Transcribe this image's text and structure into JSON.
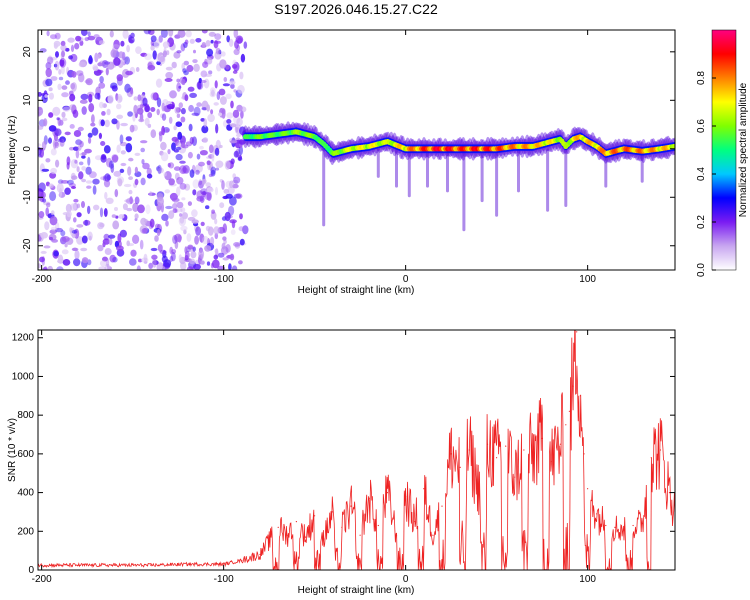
{
  "page_title": "S197.2026.046.15.27.C22",
  "chart_data": [
    {
      "type": "heatmap",
      "name": "spectrogram",
      "xlabel": "Height of straight line (km)",
      "ylabel": "Frequency (Hz)",
      "xlim": [
        -202,
        148
      ],
      "ylim": [
        -25,
        24.5
      ],
      "xticks": [
        -200,
        -100,
        0,
        100
      ],
      "yticks": [
        -20,
        -10,
        0,
        10,
        20
      ],
      "noise_region_x": [
        -202,
        -88
      ],
      "colorbar": {
        "label": "Normalized spectral amplitude",
        "range": [
          0,
          1
        ],
        "ticks": [
          "0.0",
          "0.2",
          "0.4",
          "0.6",
          "0.8"
        ],
        "tick_values": [
          0,
          0.2,
          0.4,
          0.6,
          0.8
        ],
        "stops": [
          "#ffffff",
          "#c8a6f0",
          "#7a1cf2",
          "#0000ff",
          "#00c8ff",
          "#00ff80",
          "#80ff00",
          "#ffff00",
          "#ff8000",
          "#ff0000",
          "#ff0080"
        ]
      },
      "ridge": {
        "x": [
          -88,
          -80,
          -70,
          -60,
          -50,
          -45,
          -40,
          -30,
          -20,
          -10,
          0,
          10,
          20,
          30,
          40,
          50,
          60,
          70,
          80,
          85,
          88,
          92,
          96,
          100,
          105,
          110,
          120,
          130,
          140,
          148
        ],
        "freq": [
          2.5,
          2.5,
          3,
          3.5,
          2.5,
          1,
          -1,
          0,
          0.5,
          1.5,
          0,
          0,
          0,
          0,
          0,
          0,
          0.5,
          0.5,
          1.5,
          2,
          0.5,
          2,
          2.5,
          1.5,
          0.5,
          -1,
          0,
          -0.5,
          0,
          0.5
        ],
        "peak_amplitude": [
          0.3,
          0.4,
          0.35,
          0.45,
          0.4,
          0.3,
          0.4,
          0.55,
          0.6,
          0.5,
          0.7,
          0.85,
          0.95,
          0.85,
          0.9,
          0.85,
          0.75,
          0.7,
          0.6,
          0.5,
          0.45,
          0.6,
          0.7,
          0.65,
          0.7,
          0.75,
          0.8,
          0.75,
          0.7,
          0.6
        ]
      },
      "spikes": [
        {
          "x": -15,
          "to": -6
        },
        {
          "x": -5,
          "to": -8
        },
        {
          "x": 2,
          "to": -10
        },
        {
          "x": 12,
          "to": -8
        },
        {
          "x": 23,
          "to": -9
        },
        {
          "x": 32,
          "to": -17
        },
        {
          "x": 42,
          "to": -11
        },
        {
          "x": 50,
          "to": -14
        },
        {
          "x": 62,
          "to": -9
        },
        {
          "x": 78,
          "to": -13
        },
        {
          "x": 88,
          "to": -12
        },
        {
          "x": 110,
          "to": -8
        },
        {
          "x": 130,
          "to": -7
        },
        {
          "x": -45,
          "to": -16
        }
      ]
    },
    {
      "type": "line",
      "name": "snr",
      "xlabel": "Height of straight line (km)",
      "ylabel": "SNR (10 * v/v)",
      "xlim": [
        -202,
        148
      ],
      "ylim": [
        0,
        1240
      ],
      "xticks": [
        -200,
        -100,
        0,
        100
      ],
      "yticks": [
        0,
        200,
        400,
        600,
        800,
        1000,
        1200
      ],
      "series": [
        {
          "name": "SNR",
          "color": "#ee2222",
          "x": [
            -202,
            -180,
            -160,
            -140,
            -120,
            -100,
            -90,
            -80,
            -75,
            -70,
            -65,
            -60,
            -55,
            -50,
            -45,
            -40,
            -35,
            -30,
            -25,
            -20,
            -15,
            -10,
            -5,
            0,
            5,
            10,
            15,
            20,
            25,
            30,
            35,
            40,
            45,
            50,
            55,
            60,
            65,
            70,
            75,
            80,
            85,
            88,
            90,
            92,
            94,
            96,
            98,
            100,
            105,
            110,
            115,
            120,
            125,
            130,
            135,
            140,
            145,
            148
          ],
          "y": [
            25,
            25,
            25,
            25,
            30,
            30,
            50,
            80,
            150,
            220,
            180,
            250,
            170,
            280,
            160,
            300,
            220,
            330,
            180,
            370,
            230,
            400,
            180,
            380,
            250,
            420,
            180,
            330,
            600,
            530,
            620,
            420,
            650,
            580,
            640,
            480,
            620,
            600,
            680,
            560,
            650,
            750,
            820,
            950,
            1230,
            900,
            600,
            420,
            290,
            230,
            220,
            210,
            230,
            240,
            580,
            620,
            400,
            300
          ]
        }
      ]
    }
  ]
}
